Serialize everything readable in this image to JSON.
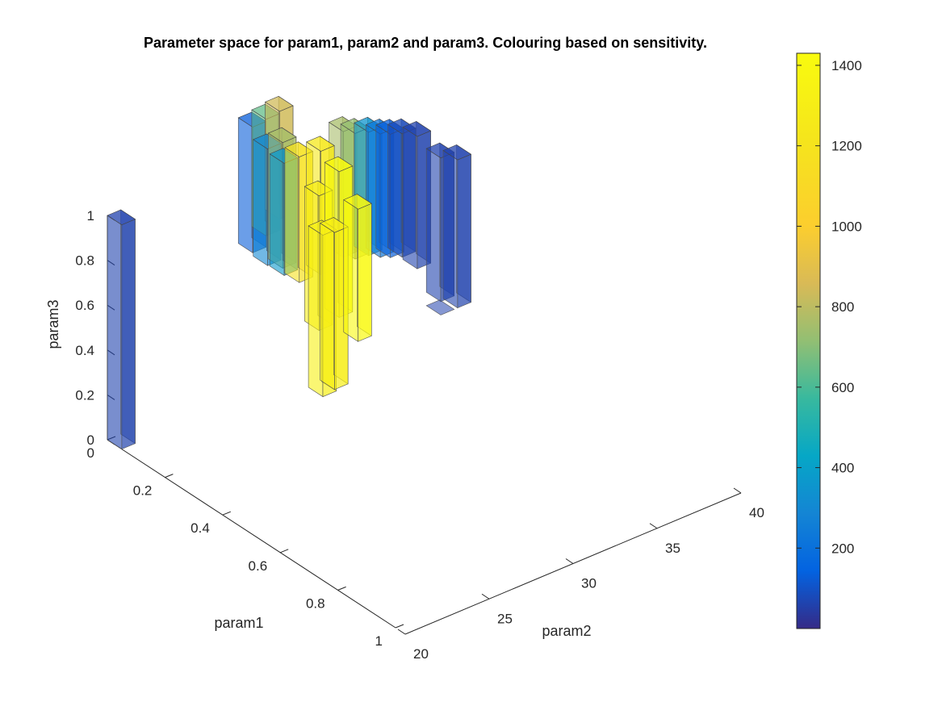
{
  "chart_data": {
    "type": "3d-bar",
    "title": "Parameter space for param1, param2 and param3. Colouring based on sensitivity.",
    "xlabel": "param1",
    "ylabel": "param2",
    "zlabel": "param3",
    "param1_ticks": [
      "0",
      "0.2",
      "0.4",
      "0.6",
      "0.8",
      "1"
    ],
    "param2_ticks": [
      "20",
      "25",
      "30",
      "35",
      "40"
    ],
    "param3_ticks": [
      "0",
      "0.2",
      "0.4",
      "0.6",
      "0.8",
      "1"
    ],
    "colorbar_ticks": [
      "200",
      "400",
      "600",
      "800",
      "1000",
      "1200",
      "1400"
    ],
    "xlim": [
      0,
      1
    ],
    "ylim": [
      20,
      40
    ],
    "zlim": [
      0,
      1
    ],
    "clim": [
      0,
      1430
    ],
    "bar_color_scale": "parula",
    "bars": [
      {
        "param1": 0.0,
        "param2": 20.0,
        "z0": 0.0,
        "z1": 1.0,
        "sensitivity": 60
      },
      {
        "param1": 0.0,
        "param2": 27.8,
        "z0": 0.63,
        "z1": 1.19,
        "sensitivity": 130
      },
      {
        "param1": 0.0,
        "param2": 28.6,
        "z0": 0.68,
        "z1": 1.2,
        "sensitivity": 640
      },
      {
        "param1": 0.0,
        "param2": 29.4,
        "z0": 0.73,
        "z1": 1.21,
        "sensitivity": 840
      },
      {
        "param1": 0.04,
        "param2": 28.0,
        "z0": 0.6,
        "z1": 1.12,
        "sensitivity": 300
      },
      {
        "param1": 0.04,
        "param2": 28.9,
        "z0": 0.56,
        "z1": 1.12,
        "sensitivity": 760
      },
      {
        "param1": 0.08,
        "param2": 28.3,
        "z0": 0.58,
        "z1": 1.08,
        "sensitivity": 370
      },
      {
        "param1": 0.08,
        "param2": 29.2,
        "z0": 0.52,
        "z1": 1.08,
        "sensitivity": 1180
      },
      {
        "param1": 0.12,
        "param2": 29.8,
        "z0": 0.57,
        "z1": 1.12,
        "sensitivity": 1240
      },
      {
        "param1": 0.16,
        "param2": 29.0,
        "z0": 0.38,
        "z1": 0.98,
        "sensitivity": 1280
      },
      {
        "param1": 0.16,
        "param2": 30.2,
        "z0": 0.4,
        "z1": 1.05,
        "sensitivity": 1430
      },
      {
        "param1": 0.22,
        "param2": 30.3,
        "z0": 0.34,
        "z1": 0.93,
        "sensitivity": 1410
      },
      {
        "param1": 0.22,
        "param2": 28.2,
        "z0": 0.16,
        "z1": 0.88,
        "sensitivity": 1320
      },
      {
        "param1": 0.22,
        "param2": 28.9,
        "z0": 0.17,
        "z1": 0.87,
        "sensitivity": 1300
      },
      {
        "param1": 0.0,
        "param2": 33.2,
        "z0": 0.44,
        "z1": 1.0,
        "sensitivity": 760
      },
      {
        "param1": 0.0,
        "param2": 33.9,
        "z0": 0.41,
        "z1": 0.97,
        "sensitivity": 720
      },
      {
        "param1": 0.0,
        "param2": 34.7,
        "z0": 0.4,
        "z1": 0.95,
        "sensitivity": 350
      },
      {
        "param1": 0.0,
        "param2": 35.4,
        "z0": 0.37,
        "z1": 0.92,
        "sensitivity": 220
      },
      {
        "param1": 0.0,
        "param2": 36.0,
        "z0": 0.35,
        "z1": 0.9,
        "sensitivity": 130
      },
      {
        "param1": 0.0,
        "param2": 36.7,
        "z0": 0.33,
        "z1": 0.88,
        "sensitivity": 80
      },
      {
        "param1": 0.0,
        "param2": 37.6,
        "z0": 0.25,
        "z1": 0.84,
        "sensitivity": 60
      },
      {
        "param1": 0.0,
        "param2": 39.0,
        "z0": 0.06,
        "z1": 0.7,
        "sensitivity": 60
      },
      {
        "param1": 0.0,
        "param2": 40.0,
        "z0": 0.0,
        "z1": 0.66,
        "sensitivity": 60
      },
      {
        "param1": 0.0,
        "param2": 39.0,
        "z0": 0.0,
        "z1": 0.0,
        "sensitivity": 60
      }
    ]
  }
}
